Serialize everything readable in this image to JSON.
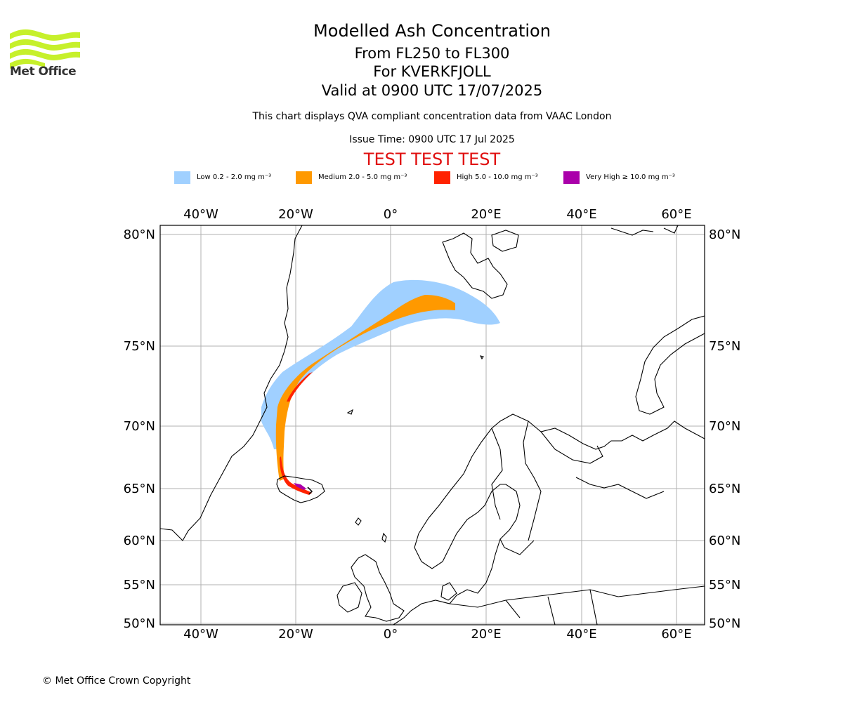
{
  "header": {
    "title": "Modelled Ash Concentration",
    "levels": "From FL250 to FL300",
    "volcano": "For KVERKFJOLL",
    "valid": "Valid at 0900 UTC 17/07/2025",
    "note": "This chart displays QVA compliant concentration data from VAAC London",
    "issue_time": "Issue Time: 0900 UTC 17 Jul 2025",
    "test_banner": "TEST TEST TEST"
  },
  "logo": {
    "text": "Met Office",
    "icon": "met-office-wave-logo",
    "color": "#c6f02b"
  },
  "legend": [
    {
      "label": "Low 0.2 - 2.0 mg m⁻³",
      "color": "#a0d0ff"
    },
    {
      "label": "Medium 2.0 - 5.0 mg m⁻³",
      "color": "#ff9900"
    },
    {
      "label": "High 5.0 - 10.0 mg m⁻³",
      "color": "#ff2200"
    },
    {
      "label": "Very High  ≥  10.0 mg m⁻³",
      "color": "#aa00aa"
    }
  ],
  "map": {
    "lon_ticks": [
      "40°W",
      "20°W",
      "0°",
      "20°E",
      "40°E",
      "60°E"
    ],
    "lat_ticks": [
      "80°N",
      "75°N",
      "70°N",
      "65°N",
      "60°N",
      "55°N",
      "50°N"
    ],
    "grid": true
  },
  "footer": {
    "copyright": "© Met Office Crown Copyright"
  }
}
